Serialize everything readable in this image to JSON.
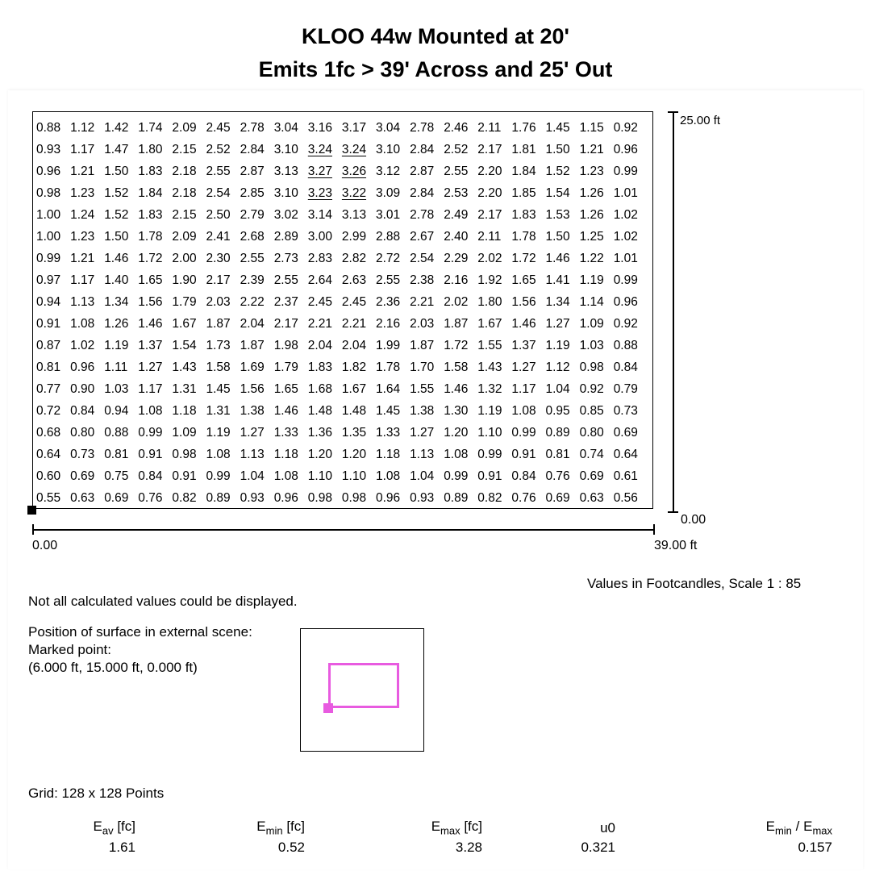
{
  "title": {
    "line1": "KLOO 44w Mounted at 20'",
    "line2": "Emits 1fc > 39' Across and 25' Out"
  },
  "grid": {
    "underlined": [
      [
        1,
        8
      ],
      [
        1,
        9
      ],
      [
        2,
        8
      ],
      [
        2,
        9
      ],
      [
        3,
        8
      ],
      [
        3,
        9
      ]
    ],
    "rows": [
      [
        "0.88",
        "1.12",
        "1.42",
        "1.74",
        "2.09",
        "2.45",
        "2.78",
        "3.04",
        "3.16",
        "3.17",
        "3.04",
        "2.78",
        "2.46",
        "2.11",
        "1.76",
        "1.45",
        "1.15",
        "0.92"
      ],
      [
        "0.93",
        "1.17",
        "1.47",
        "1.80",
        "2.15",
        "2.52",
        "2.84",
        "3.10",
        "3.24",
        "3.24",
        "3.10",
        "2.84",
        "2.52",
        "2.17",
        "1.81",
        "1.50",
        "1.21",
        "0.96"
      ],
      [
        "0.96",
        "1.21",
        "1.50",
        "1.83",
        "2.18",
        "2.55",
        "2.87",
        "3.13",
        "3.27",
        "3.26",
        "3.12",
        "2.87",
        "2.55",
        "2.20",
        "1.84",
        "1.52",
        "1.23",
        "0.99"
      ],
      [
        "0.98",
        "1.23",
        "1.52",
        "1.84",
        "2.18",
        "2.54",
        "2.85",
        "3.10",
        "3.23",
        "3.22",
        "3.09",
        "2.84",
        "2.53",
        "2.20",
        "1.85",
        "1.54",
        "1.26",
        "1.01"
      ],
      [
        "1.00",
        "1.24",
        "1.52",
        "1.83",
        "2.15",
        "2.50",
        "2.79",
        "3.02",
        "3.14",
        "3.13",
        "3.01",
        "2.78",
        "2.49",
        "2.17",
        "1.83",
        "1.53",
        "1.26",
        "1.02"
      ],
      [
        "1.00",
        "1.23",
        "1.50",
        "1.78",
        "2.09",
        "2.41",
        "2.68",
        "2.89",
        "3.00",
        "2.99",
        "2.88",
        "2.67",
        "2.40",
        "2.11",
        "1.78",
        "1.50",
        "1.25",
        "1.02"
      ],
      [
        "0.99",
        "1.21",
        "1.46",
        "1.72",
        "2.00",
        "2.30",
        "2.55",
        "2.73",
        "2.83",
        "2.82",
        "2.72",
        "2.54",
        "2.29",
        "2.02",
        "1.72",
        "1.46",
        "1.22",
        "1.01"
      ],
      [
        "0.97",
        "1.17",
        "1.40",
        "1.65",
        "1.90",
        "2.17",
        "2.39",
        "2.55",
        "2.64",
        "2.63",
        "2.55",
        "2.38",
        "2.16",
        "1.92",
        "1.65",
        "1.41",
        "1.19",
        "0.99"
      ],
      [
        "0.94",
        "1.13",
        "1.34",
        "1.56",
        "1.79",
        "2.03",
        "2.22",
        "2.37",
        "2.45",
        "2.45",
        "2.36",
        "2.21",
        "2.02",
        "1.80",
        "1.56",
        "1.34",
        "1.14",
        "0.96"
      ],
      [
        "0.91",
        "1.08",
        "1.26",
        "1.46",
        "1.67",
        "1.87",
        "2.04",
        "2.17",
        "2.21",
        "2.21",
        "2.16",
        "2.03",
        "1.87",
        "1.67",
        "1.46",
        "1.27",
        "1.09",
        "0.92"
      ],
      [
        "0.87",
        "1.02",
        "1.19",
        "1.37",
        "1.54",
        "1.73",
        "1.87",
        "1.98",
        "2.04",
        "2.04",
        "1.99",
        "1.87",
        "1.72",
        "1.55",
        "1.37",
        "1.19",
        "1.03",
        "0.88"
      ],
      [
        "0.81",
        "0.96",
        "1.11",
        "1.27",
        "1.43",
        "1.58",
        "1.69",
        "1.79",
        "1.83",
        "1.82",
        "1.78",
        "1.70",
        "1.58",
        "1.43",
        "1.27",
        "1.12",
        "0.98",
        "0.84"
      ],
      [
        "0.77",
        "0.90",
        "1.03",
        "1.17",
        "1.31",
        "1.45",
        "1.56",
        "1.65",
        "1.68",
        "1.67",
        "1.64",
        "1.55",
        "1.46",
        "1.32",
        "1.17",
        "1.04",
        "0.92",
        "0.79"
      ],
      [
        "0.72",
        "0.84",
        "0.94",
        "1.08",
        "1.18",
        "1.31",
        "1.38",
        "1.46",
        "1.48",
        "1.48",
        "1.45",
        "1.38",
        "1.30",
        "1.19",
        "1.08",
        "0.95",
        "0.85",
        "0.73"
      ],
      [
        "0.68",
        "0.80",
        "0.88",
        "0.99",
        "1.09",
        "1.19",
        "1.27",
        "1.33",
        "1.36",
        "1.35",
        "1.33",
        "1.27",
        "1.20",
        "1.10",
        "0.99",
        "0.89",
        "0.80",
        "0.69"
      ],
      [
        "0.64",
        "0.73",
        "0.81",
        "0.91",
        "0.98",
        "1.08",
        "1.13",
        "1.18",
        "1.20",
        "1.20",
        "1.18",
        "1.13",
        "1.08",
        "0.99",
        "0.91",
        "0.81",
        "0.74",
        "0.64"
      ],
      [
        "0.60",
        "0.69",
        "0.75",
        "0.84",
        "0.91",
        "0.99",
        "1.04",
        "1.08",
        "1.10",
        "1.10",
        "1.08",
        "1.04",
        "0.99",
        "0.91",
        "0.84",
        "0.76",
        "0.69",
        "0.61"
      ],
      [
        "0.55",
        "0.63",
        "0.69",
        "0.76",
        "0.82",
        "0.89",
        "0.93",
        "0.96",
        "0.98",
        "0.98",
        "0.96",
        "0.93",
        "0.89",
        "0.82",
        "0.76",
        "0.69",
        "0.63",
        "0.56"
      ]
    ]
  },
  "axes": {
    "x_start": "0.00",
    "x_end": "39.00 ft",
    "y_top": "25.00 ft",
    "y_bottom": "0.00"
  },
  "notes": {
    "scale": "Values in Footcandles, Scale 1 : 85",
    "not_all": "Not all calculated values could be displayed.",
    "position_line1": "Position of surface in external scene:",
    "position_line2": "Marked point:",
    "position_line3": "(6.000 ft, 15.000 ft, 0.000 ft)",
    "grid": "Grid: 128 x 128 Points"
  },
  "colors": {
    "surface_highlight": "#e85be0"
  },
  "stats": {
    "eav_label": {
      "main": "E",
      "sub": "av",
      "unit": " [fc]"
    },
    "eav_value": "1.61",
    "emin_label": {
      "main": "E",
      "sub": "min",
      "unit": " [fc]"
    },
    "emin_value": "0.52",
    "emax_label": {
      "main": "E",
      "sub": "max",
      "unit": " [fc]"
    },
    "emax_value": "3.28",
    "u0_label": "u0",
    "u0_value": "0.321",
    "ratio_label": {
      "a": "E",
      "a_sub": "min",
      "sep": " / ",
      "b": "E",
      "b_sub": "max"
    },
    "ratio_value": "0.157"
  }
}
